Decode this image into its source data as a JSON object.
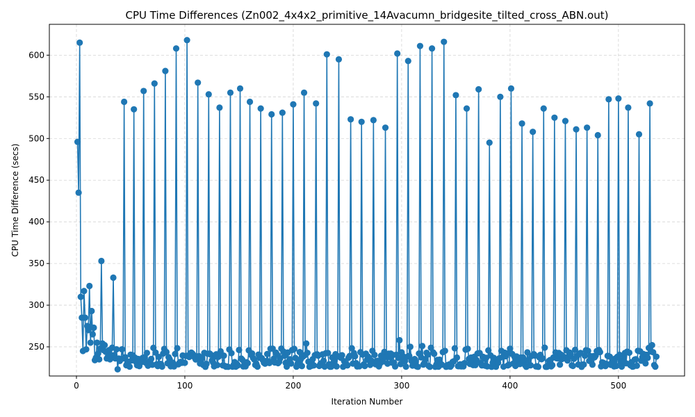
{
  "chart_data": {
    "type": "line",
    "title": "CPU Time Differences (Zn002_4x4x2_primitive_14Avacumn_bridgesite_tilted_cross_ABN.out)",
    "xlabel": "Iteration Number",
    "ylabel": "CPU Time Difference (secs)",
    "xlim": [
      -25,
      561
    ],
    "ylim": [
      215,
      637
    ],
    "x_ticks": [
      0,
      100,
      200,
      300,
      400,
      500
    ],
    "y_ticks": [
      250,
      300,
      350,
      400,
      450,
      500,
      550,
      600
    ],
    "grid": true,
    "legend": "none",
    "series_color": "#1f77b4",
    "markers": "circle",
    "x_start": 1,
    "peaks": [
      {
        "x": 44,
        "y": 544
      },
      {
        "x": 53,
        "y": 535
      },
      {
        "x": 62,
        "y": 557
      },
      {
        "x": 72,
        "y": 566
      },
      {
        "x": 82,
        "y": 581
      },
      {
        "x": 92,
        "y": 608
      },
      {
        "x": 102,
        "y": 618
      },
      {
        "x": 112,
        "y": 567
      },
      {
        "x": 122,
        "y": 553
      },
      {
        "x": 132,
        "y": 537
      },
      {
        "x": 142,
        "y": 555
      },
      {
        "x": 151,
        "y": 560
      },
      {
        "x": 160,
        "y": 544
      },
      {
        "x": 170,
        "y": 536
      },
      {
        "x": 180,
        "y": 529
      },
      {
        "x": 190,
        "y": 531
      },
      {
        "x": 200,
        "y": 541
      },
      {
        "x": 210,
        "y": 555
      },
      {
        "x": 221,
        "y": 542
      },
      {
        "x": 231,
        "y": 601
      },
      {
        "x": 242,
        "y": 595
      },
      {
        "x": 253,
        "y": 523
      },
      {
        "x": 263,
        "y": 520
      },
      {
        "x": 274,
        "y": 522
      },
      {
        "x": 285,
        "y": 513
      },
      {
        "x": 296,
        "y": 602
      },
      {
        "x": 306,
        "y": 593
      },
      {
        "x": 317,
        "y": 611
      },
      {
        "x": 328,
        "y": 608
      },
      {
        "x": 339,
        "y": 616
      },
      {
        "x": 350,
        "y": 552
      },
      {
        "x": 360,
        "y": 536
      },
      {
        "x": 371,
        "y": 559
      },
      {
        "x": 381,
        "y": 495
      },
      {
        "x": 391,
        "y": 550
      },
      {
        "x": 401,
        "y": 560
      },
      {
        "x": 411,
        "y": 518
      },
      {
        "x": 421,
        "y": 508
      },
      {
        "x": 431,
        "y": 536
      },
      {
        "x": 441,
        "y": 525
      },
      {
        "x": 451,
        "y": 521
      },
      {
        "x": 461,
        "y": 511
      },
      {
        "x": 471,
        "y": 513
      },
      {
        "x": 481,
        "y": 504
      },
      {
        "x": 491,
        "y": 547
      },
      {
        "x": 500,
        "y": 548
      },
      {
        "x": 509,
        "y": 537
      },
      {
        "x": 519,
        "y": 505
      },
      {
        "x": 529,
        "y": 542
      }
    ],
    "early_points": [
      {
        "x": 1,
        "y": 496
      },
      {
        "x": 2,
        "y": 435
      },
      {
        "x": 3,
        "y": 615
      },
      {
        "x": 4,
        "y": 310
      },
      {
        "x": 5,
        "y": 285
      },
      {
        "x": 6,
        "y": 245
      },
      {
        "x": 7,
        "y": 317
      },
      {
        "x": 8,
        "y": 285
      },
      {
        "x": 9,
        "y": 247
      },
      {
        "x": 10,
        "y": 275
      },
      {
        "x": 11,
        "y": 270
      },
      {
        "x": 12,
        "y": 323
      },
      {
        "x": 13,
        "y": 255
      },
      {
        "x": 14,
        "y": 293
      },
      {
        "x": 15,
        "y": 265
      },
      {
        "x": 16,
        "y": 273
      },
      {
        "x": 17,
        "y": 234
      },
      {
        "x": 18,
        "y": 237
      },
      {
        "x": 19,
        "y": 255
      },
      {
        "x": 20,
        "y": 242
      },
      {
        "x": 21,
        "y": 235
      },
      {
        "x": 22,
        "y": 248
      },
      {
        "x": 23,
        "y": 353
      },
      {
        "x": 24,
        "y": 254
      },
      {
        "x": 25,
        "y": 246
      },
      {
        "x": 26,
        "y": 252
      },
      {
        "x": 27,
        "y": 244
      },
      {
        "x": 28,
        "y": 236
      },
      {
        "x": 29,
        "y": 238
      },
      {
        "x": 30,
        "y": 246
      },
      {
        "x": 31,
        "y": 235
      },
      {
        "x": 32,
        "y": 240
      },
      {
        "x": 33,
        "y": 249
      },
      {
        "x": 34,
        "y": 333
      },
      {
        "x": 35,
        "y": 240
      },
      {
        "x": 36,
        "y": 236
      },
      {
        "x": 37,
        "y": 247
      },
      {
        "x": 38,
        "y": 223
      },
      {
        "x": 39,
        "y": 236
      },
      {
        "x": 40,
        "y": 233
      },
      {
        "x": 41,
        "y": 235
      },
      {
        "x": 42,
        "y": 247
      },
      {
        "x": 43,
        "y": 236
      }
    ],
    "baseline_range": [
      226,
      250
    ],
    "outliers": [
      {
        "x": 212,
        "y": 254
      },
      {
        "x": 298,
        "y": 258
      },
      {
        "x": 308,
        "y": 250
      },
      {
        "x": 319,
        "y": 251
      },
      {
        "x": 531,
        "y": 252
      }
    ],
    "x_end": 535
  }
}
